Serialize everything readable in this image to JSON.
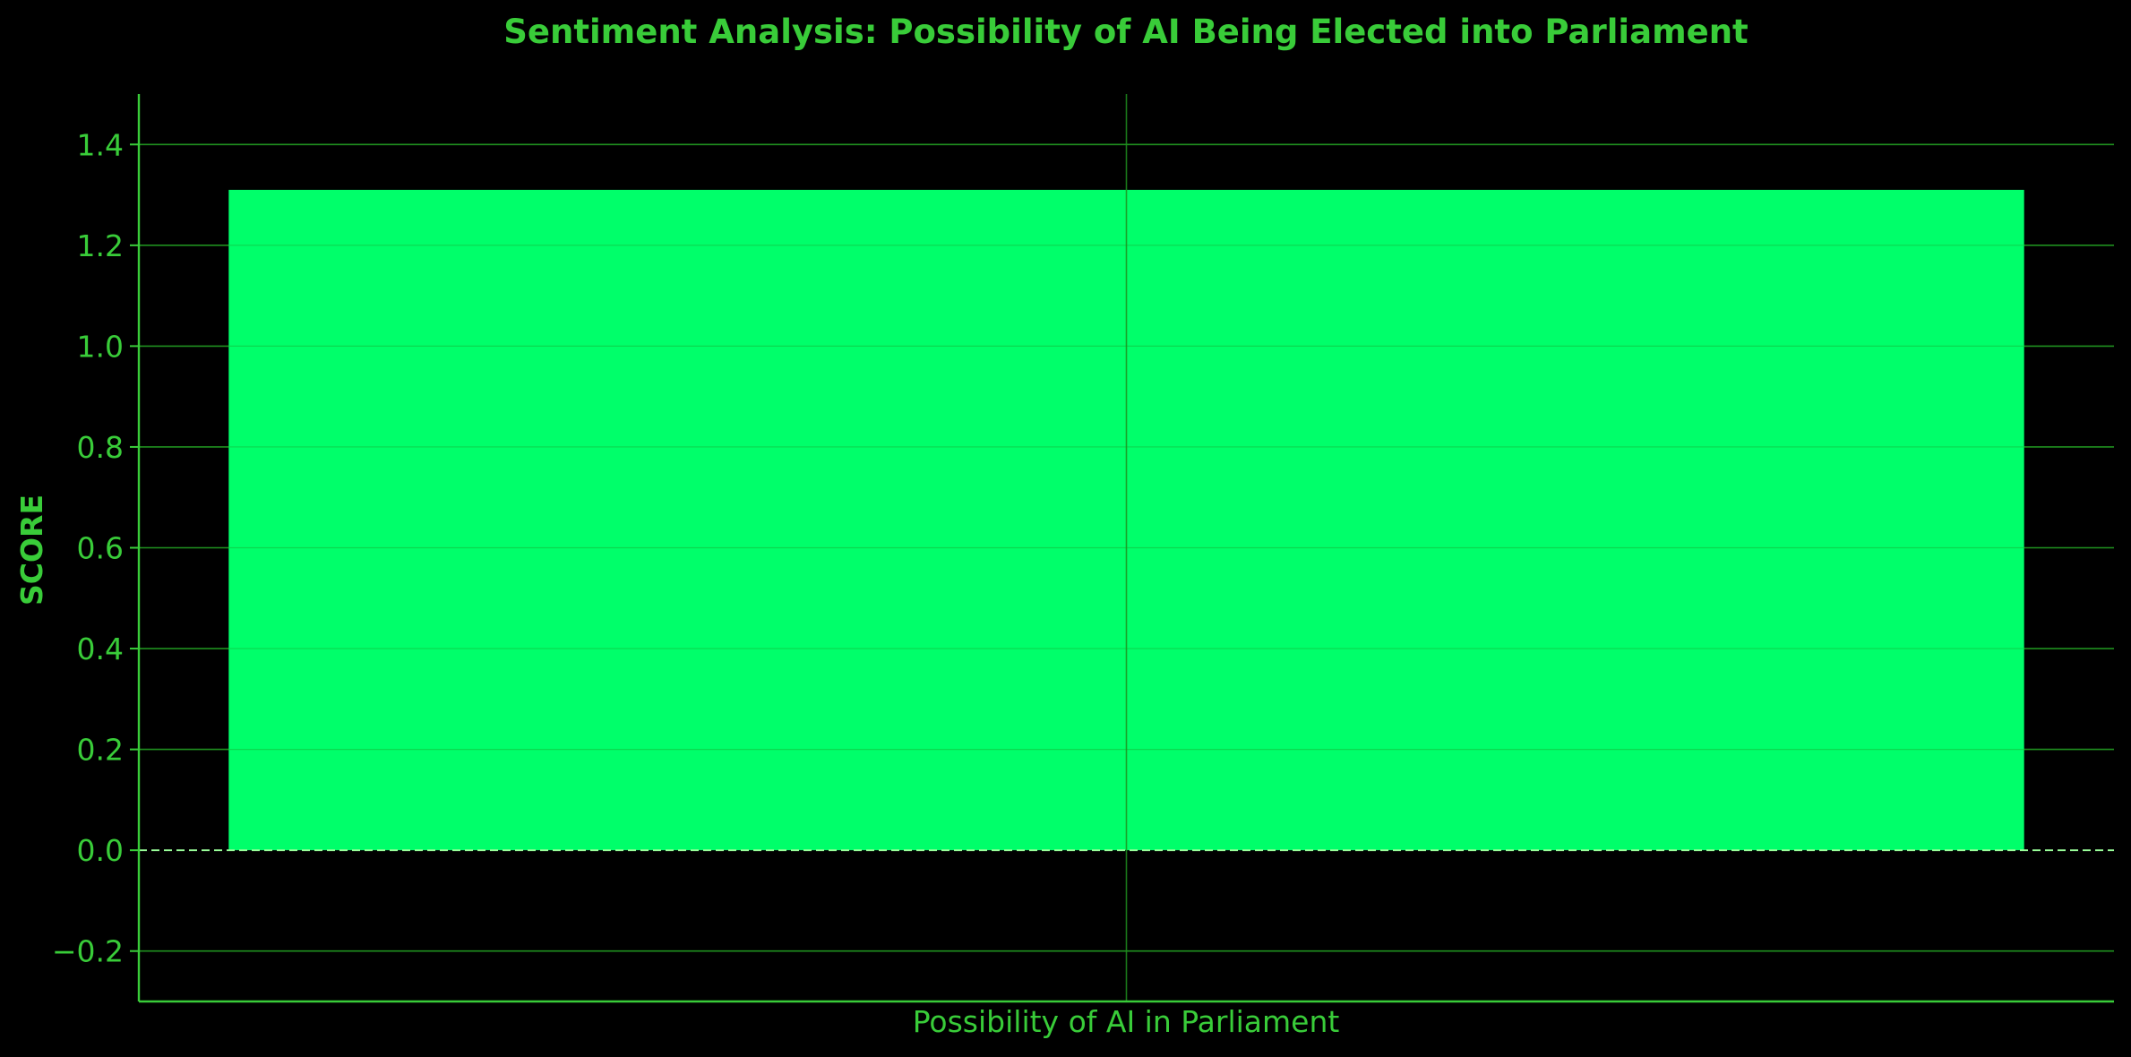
{
  "chart_data": {
    "type": "bar",
    "title": "Sentiment Analysis: Possibility of AI Being Elected into Parliament",
    "xlabel": "Possibility of AI in Parliament",
    "ylabel": "SCORE",
    "categories": [
      ""
    ],
    "values": [
      1.31
    ],
    "ylim": [
      -0.3,
      1.5
    ],
    "yticks": [
      -0.2,
      0.0,
      0.2,
      0.4,
      0.6,
      0.8,
      1.0,
      1.2,
      1.4
    ],
    "ytick_labels": [
      "−0.2",
      "0.0",
      "0.2",
      "0.4",
      "0.6",
      "0.8",
      "1.0",
      "1.2",
      "1.4"
    ],
    "grid": true,
    "zero_line": "dashed",
    "legend": "none"
  },
  "colors": {
    "background": "#000000",
    "bar": "#00ff6a",
    "text": "#39cc39",
    "axis": "#39cc39",
    "grid": "#1f8f1f",
    "zero_line": "#9aff9a"
  }
}
